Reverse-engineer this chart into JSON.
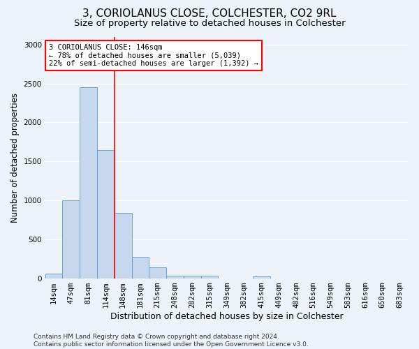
{
  "title": "3, CORIOLANUS CLOSE, COLCHESTER, CO2 9RL",
  "subtitle": "Size of property relative to detached houses in Colchester",
  "xlabel": "Distribution of detached houses by size in Colchester",
  "ylabel": "Number of detached properties",
  "footer_line1": "Contains HM Land Registry data © Crown copyright and database right 2024.",
  "footer_line2": "Contains public sector information licensed under the Open Government Licence v3.0.",
  "categories": [
    "14sqm",
    "47sqm",
    "81sqm",
    "114sqm",
    "148sqm",
    "181sqm",
    "215sqm",
    "248sqm",
    "282sqm",
    "315sqm",
    "349sqm",
    "382sqm",
    "415sqm",
    "449sqm",
    "482sqm",
    "516sqm",
    "549sqm",
    "583sqm",
    "616sqm",
    "650sqm",
    "683sqm"
  ],
  "values": [
    60,
    1000,
    2450,
    1650,
    840,
    280,
    140,
    40,
    40,
    35,
    0,
    0,
    25,
    0,
    0,
    0,
    0,
    0,
    0,
    0,
    0
  ],
  "bar_color": "#c5d8ed",
  "bar_edge_color": "#5b9bd5",
  "bar_width": 1.0,
  "red_line_index": 4,
  "annotation_text": "3 CORIOLANUS CLOSE: 146sqm\n← 78% of detached houses are smaller (5,039)\n22% of semi-detached houses are larger (1,392) →",
  "annotation_box_color": "white",
  "annotation_box_edge_color": "red",
  "ylim": [
    0,
    3100
  ],
  "background_color": "#eef2f9",
  "grid_color": "white",
  "title_fontsize": 11,
  "subtitle_fontsize": 9.5,
  "axis_label_fontsize": 8.5,
  "tick_fontsize": 7.5,
  "footer_fontsize": 6.5
}
